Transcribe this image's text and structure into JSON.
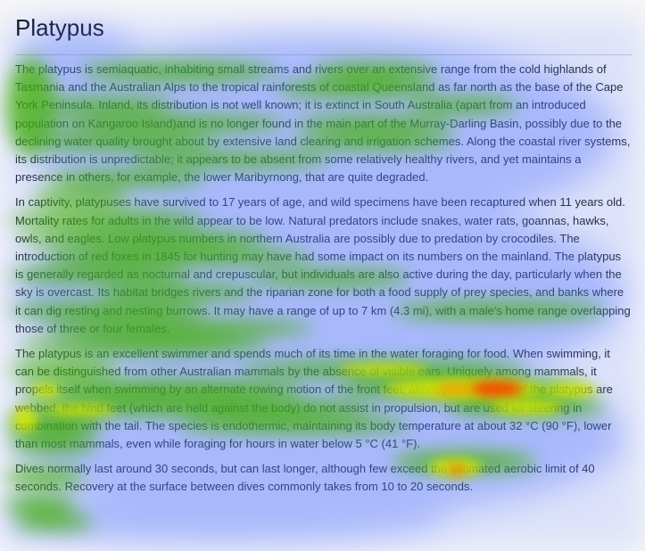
{
  "article": {
    "title": "Platypus",
    "paragraphs": [
      "The platypus is semiaquatic, inhabiting small streams and rivers over an extensive range from the cold highlands of Tasmania and the Australian Alps to the tropical rainforests of coastal Queensland as far north as the base of the Cape York Peninsula. Inland, its distribution is not well known; it is extinct in South Australia (apart from an introduced population on Kangaroo Island)and is no longer found in the main part of the Murray-Darling Basin, possibly due to the declining water quality brought about by extensive land clearing and irrigation schemes. Along the coastal river systems, its distribution is unpredictable; it appears to be absent from some relatively healthy rivers, and yet maintains a presence in others, for example, the lower Maribyrnong, that are quite degraded.",
      "In captivity, platypuses have survived to 17 years of age, and wild specimens have been recaptured when 11 years old. Mortality rates for adults in the wild appear to be low. Natural predators include snakes, water rats, goannas, hawks, owls, and eagles. Low platypus numbers in northern Australia are possibly due to predation by crocodiles. The introduction of red foxes in 1845 for hunting may have had some impact on its numbers on the mainland. The platypus is generally regarded as nocturnal and crepuscular, but individuals are also active during the day, particularly when the sky is overcast. Its habitat bridges rivers and the riparian zone for both a food supply of prey species, and banks where it can dig resting and nesting burrows. It may have a range of up to 7 km (4.3 mi), with a male's home range overlapping those of three or four females.",
      "The platypus is an excellent swimmer and spends much of its time in the water foraging for food. When swimming, it can be distinguished from other Australian mammals by the absence of visible ears. Uniquely among mammals, it propels itself when swimming by an alternate rowing motion of the front feet; although all four feet of the platypus are webbed, the hind feet (which are held against the body) do not assist in propulsion, but are used for steering in combination with the tail. The species is endothermic, maintaining its body temperature at about 32 °C (90 °F), lower than most mammals, even while foraging for hours in water below 5 °C (41 °F).",
      "Dives normally last around 30 seconds, but can last longer, although few exceed the estimated aerobic limit of 40 seconds. Recovery at the surface between dives commonly takes from 10 to 20 seconds."
    ]
  },
  "heatmap": {
    "colors": {
      "background_tint": "#4a6cff",
      "low": "#3fb000",
      "mid": "#d8e800",
      "high": "#ff2a00"
    }
  }
}
